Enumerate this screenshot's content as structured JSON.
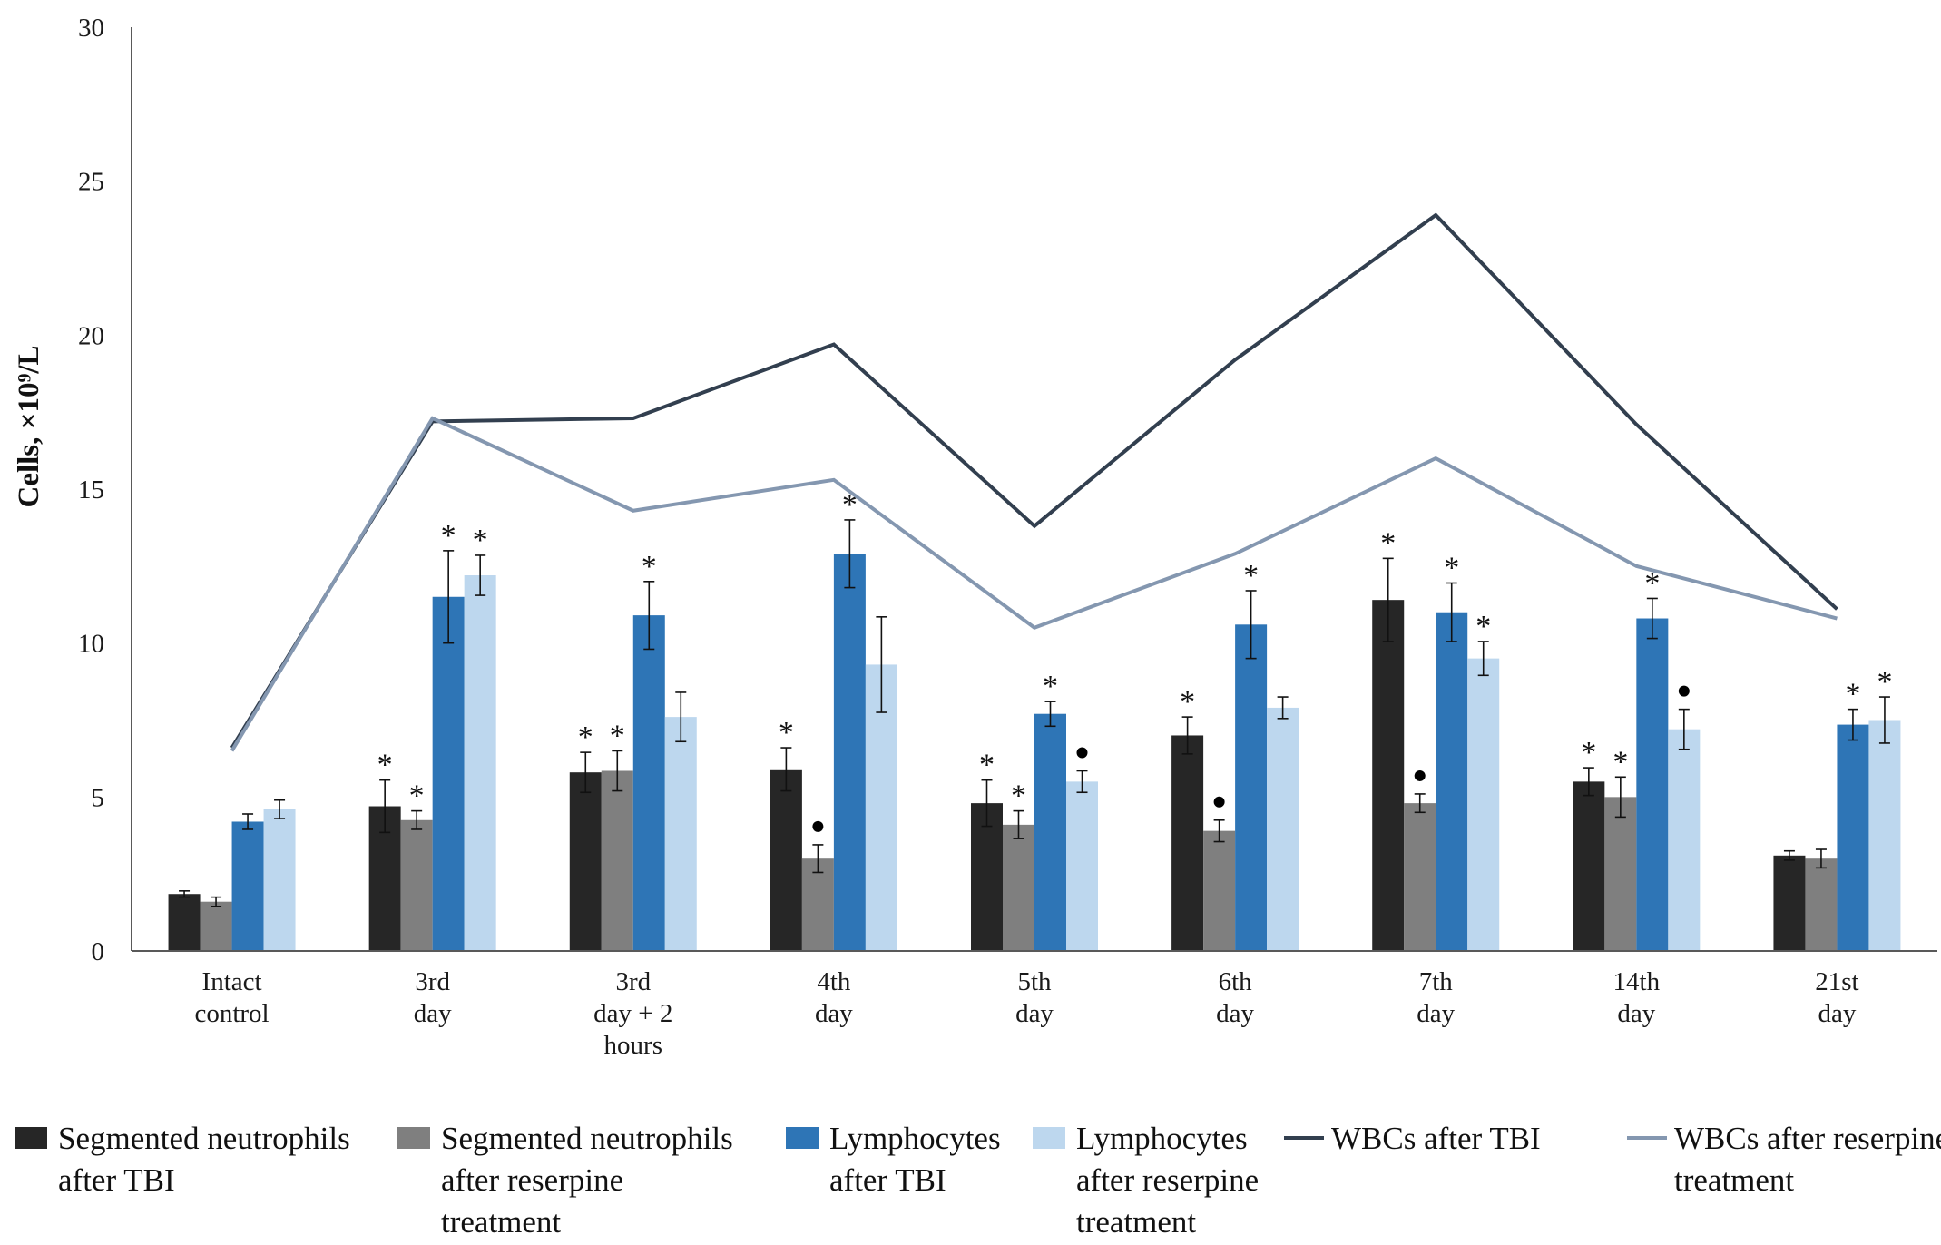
{
  "chart_data": {
    "type": "bar",
    "ylabel": "Cells, ×10⁹/L",
    "ylim": [
      0,
      30
    ],
    "yticks": [
      0,
      5,
      10,
      15,
      20,
      25,
      30
    ],
    "categories": [
      [
        "Intact",
        "control"
      ],
      [
        "3rd",
        "day"
      ],
      [
        "3rd",
        "day + 2",
        "hours"
      ],
      [
        "4th",
        "day"
      ],
      [
        "5th",
        "day"
      ],
      [
        "6th",
        "day"
      ],
      [
        "7th",
        "day"
      ],
      [
        "14th",
        "day"
      ],
      [
        "21st",
        "day"
      ]
    ],
    "series": [
      {
        "name": [
          "Segmented neutrophils",
          "after TBI"
        ],
        "kind": "bar",
        "color": "#262626",
        "values": [
          1.85,
          4.7,
          5.8,
          5.9,
          4.8,
          7.0,
          11.4,
          5.5,
          3.1
        ],
        "errors": [
          0.1,
          0.85,
          0.65,
          0.7,
          0.75,
          0.6,
          1.35,
          0.45,
          0.15
        ],
        "marks": [
          "",
          "*",
          "*",
          "*",
          "*",
          "*",
          "*",
          "*",
          ""
        ]
      },
      {
        "name": [
          "Segmented neutrophils",
          "after reserpine",
          "treatment"
        ],
        "kind": "bar",
        "color": "#7f7f7f",
        "values": [
          1.6,
          4.25,
          5.85,
          3.0,
          4.1,
          3.9,
          4.8,
          5.0,
          3.0
        ],
        "errors": [
          0.15,
          0.3,
          0.65,
          0.45,
          0.45,
          0.35,
          0.3,
          0.65,
          0.3
        ],
        "marks": [
          "",
          "*",
          "*",
          "•",
          "*",
          "•",
          "•",
          "*",
          ""
        ]
      },
      {
        "name": [
          "Lymphocytes",
          "after TBI"
        ],
        "kind": "bar",
        "color": "#2e75b6",
        "values": [
          4.2,
          11.5,
          10.9,
          12.9,
          7.7,
          10.6,
          11.0,
          10.8,
          7.35
        ],
        "errors": [
          0.25,
          1.5,
          1.1,
          1.1,
          0.4,
          1.1,
          0.95,
          0.65,
          0.5
        ],
        "marks": [
          "",
          "*",
          "*",
          "*",
          "*",
          "*",
          "*",
          "*",
          "*"
        ]
      },
      {
        "name": [
          "Lymphocytes",
          "after reserpine",
          "treatment"
        ],
        "kind": "bar",
        "color": "#bdd7ee",
        "values": [
          4.6,
          12.2,
          7.6,
          9.3,
          5.5,
          7.9,
          9.5,
          7.2,
          7.5
        ],
        "errors": [
          0.3,
          0.65,
          0.8,
          1.55,
          0.35,
          0.35,
          0.55,
          0.65,
          0.75
        ],
        "marks": [
          "",
          "*",
          "",
          "",
          "•",
          "",
          "*",
          "•",
          "*"
        ]
      },
      {
        "name": [
          "WBCs after TBI"
        ],
        "kind": "line",
        "color": "#323f4f",
        "values": [
          6.6,
          17.2,
          17.3,
          19.7,
          13.8,
          19.2,
          23.9,
          17.1,
          11.1
        ]
      },
      {
        "name": [
          "WBCs after reserpine",
          "treatment"
        ],
        "kind": "line",
        "color": "#8497b0",
        "values": [
          6.5,
          17.3,
          14.3,
          15.3,
          10.5,
          12.9,
          16.0,
          12.5,
          10.8
        ]
      }
    ]
  }
}
